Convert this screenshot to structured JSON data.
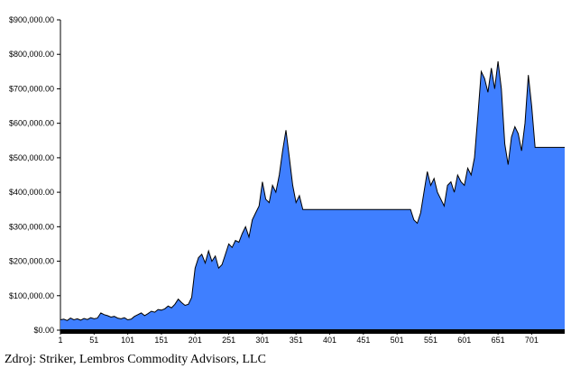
{
  "chart_data": {
    "type": "area",
    "title": "",
    "xlabel": "",
    "ylabel": "",
    "x_ticks": [
      "1",
      "51",
      "101",
      "151",
      "201",
      "251",
      "301",
      "351",
      "401",
      "451",
      "501",
      "551",
      "601",
      "651",
      "701"
    ],
    "xlim": [
      1,
      750
    ],
    "y_ticks": [
      "$0.00",
      "$100,000.00",
      "$200,000.00",
      "$300,000.00",
      "$400,000.00",
      "$500,000.00",
      "$600,000.00",
      "$700,000.00",
      "$800,000.00",
      "$900,000.00"
    ],
    "ylim": [
      0,
      900000
    ],
    "grid": false,
    "legend": "none",
    "fill_color": "#3f7fff",
    "line_color": "#000000",
    "series": [
      {
        "x": [
          1,
          6,
          11,
          16,
          21,
          26,
          31,
          36,
          41,
          46,
          51,
          56,
          61,
          66,
          71,
          76,
          81,
          86,
          91,
          96,
          101,
          106,
          111,
          116,
          121,
          126,
          131,
          136,
          141,
          146,
          151,
          156,
          161,
          166,
          171,
          176,
          181,
          186,
          191,
          196,
          201,
          206,
          211,
          216,
          221,
          226,
          231,
          236,
          241,
          246,
          251,
          256,
          261,
          266,
          271,
          276,
          281,
          286,
          291,
          296,
          301,
          306,
          311,
          316,
          321,
          326,
          331,
          336,
          341,
          346,
          351,
          356,
          361,
          371,
          381,
          391,
          401,
          411,
          421,
          431,
          441,
          451,
          461,
          471,
          481,
          491,
          501,
          511,
          521,
          526,
          531,
          536,
          541,
          546,
          551,
          556,
          561,
          566,
          571,
          576,
          581,
          586,
          591,
          596,
          601,
          606,
          611,
          616,
          621,
          626,
          631,
          636,
          641,
          646,
          651,
          656,
          661,
          666,
          671,
          676,
          681,
          686,
          691,
          696,
          701,
          706,
          716,
          726,
          736,
          750
        ],
        "values": [
          30000,
          32000,
          28000,
          35000,
          30000,
          33000,
          29000,
          34000,
          31000,
          36000,
          33000,
          35000,
          50000,
          45000,
          42000,
          38000,
          40000,
          35000,
          33000,
          36000,
          30000,
          32000,
          40000,
          45000,
          50000,
          42000,
          48000,
          55000,
          52000,
          60000,
          58000,
          62000,
          70000,
          65000,
          75000,
          90000,
          80000,
          72000,
          75000,
          95000,
          180000,
          210000,
          220000,
          195000,
          230000,
          200000,
          215000,
          180000,
          190000,
          220000,
          250000,
          240000,
          260000,
          255000,
          280000,
          300000,
          270000,
          320000,
          340000,
          360000,
          430000,
          380000,
          370000,
          420000,
          400000,
          450000,
          520000,
          580000,
          500000,
          420000,
          370000,
          390000,
          350000,
          350000,
          350000,
          350000,
          350000,
          350000,
          350000,
          350000,
          350000,
          350000,
          350000,
          350000,
          350000,
          350000,
          350000,
          350000,
          350000,
          320000,
          310000,
          340000,
          400000,
          460000,
          420000,
          440000,
          400000,
          380000,
          360000,
          420000,
          430000,
          400000,
          450000,
          430000,
          420000,
          470000,
          450000,
          500000,
          620000,
          750000,
          730000,
          690000,
          760000,
          700000,
          780000,
          700000,
          540000,
          480000,
          560000,
          590000,
          570000,
          520000,
          600000,
          740000,
          650000,
          530000,
          530000,
          530000,
          530000,
          530000
        ]
      }
    ]
  },
  "source_note": "Zdroj: Striker, Lembros Commodity Advisors, LLC"
}
